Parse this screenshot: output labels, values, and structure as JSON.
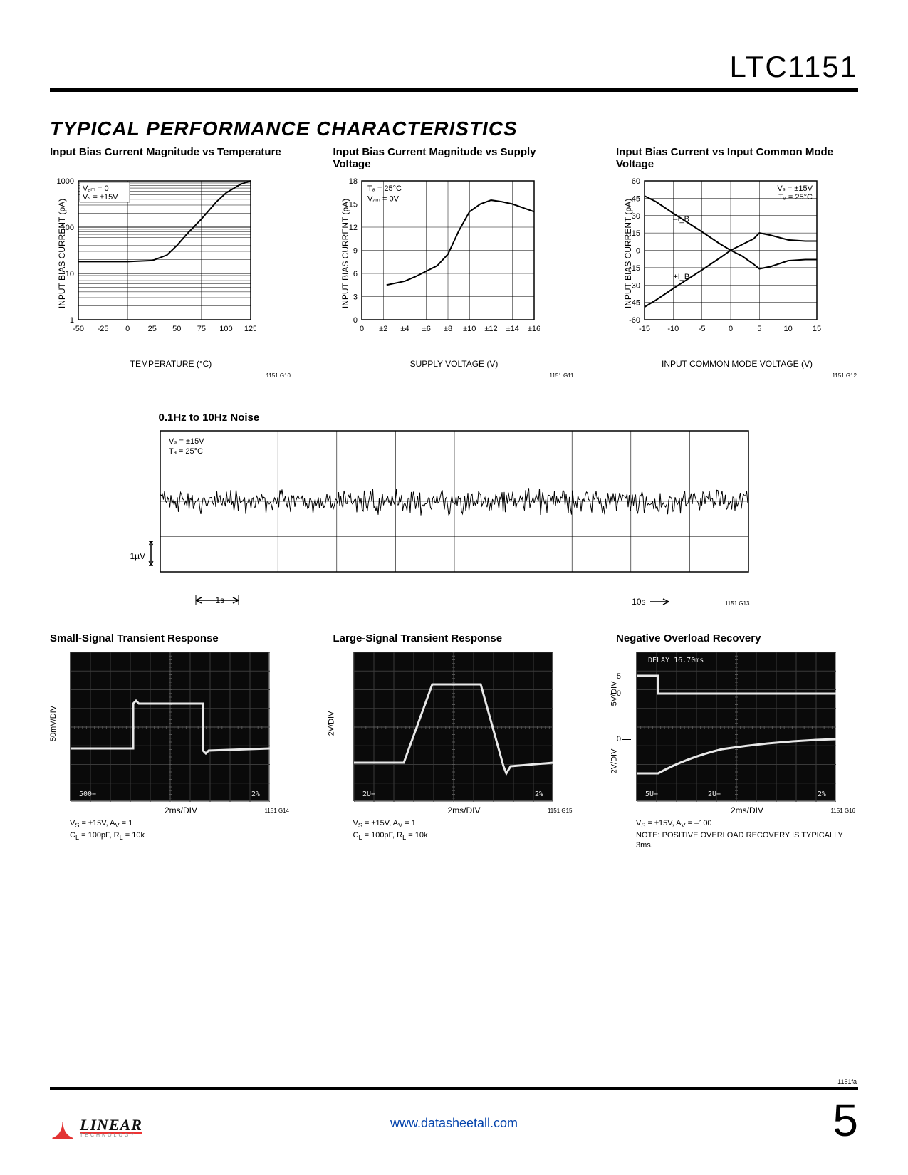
{
  "part_number": "LTC1151",
  "section_title": "TYPICAL PERFORMANCE CHARACTERISTICS",
  "charts": {
    "chart1": {
      "title": "Input Bias Current Magnitude vs Temperature",
      "figno": "1151 G10",
      "xlabel": "TEMPERATURE (°C)",
      "ylabel": "INPUT BIAS CURRENT (pA)",
      "yscale": "log",
      "xlim": [
        -50,
        125
      ],
      "xtick_step": 25,
      "ylim": [
        1,
        1000
      ],
      "yticks": [
        1,
        10,
        100,
        1000
      ],
      "annotation": [
        "V_CM = 0",
        "V_S = ±15V"
      ],
      "line_color": "#000000",
      "line_width": 2,
      "data_x": [
        -50,
        -25,
        0,
        25,
        40,
        50,
        60,
        75,
        90,
        100,
        115,
        125
      ],
      "data_y": [
        18,
        18,
        18,
        19,
        25,
        40,
        70,
        150,
        350,
        550,
        850,
        1000
      ]
    },
    "chart2": {
      "title": "Input Bias Current Magnitude vs Supply Voltage",
      "figno": "1151 G11",
      "xlabel": "SUPPLY VOLTAGE (V)",
      "ylabel": "INPUT BIAS CURRENT (pA)",
      "yscale": "linear",
      "xticks": [
        "0",
        "±2",
        "±4",
        "±6",
        "±8",
        "±10",
        "±12",
        "±14",
        "±16"
      ],
      "xlim": [
        0,
        16
      ],
      "ylim": [
        0,
        18
      ],
      "ytick_step": 3,
      "annotation": [
        "T_A = 25°C",
        "V_CM = 0V"
      ],
      "line_color": "#000000",
      "line_width": 2,
      "data_x": [
        2.3,
        4,
        5,
        6,
        7,
        8,
        9,
        10,
        11,
        12,
        13,
        14,
        15,
        16
      ],
      "data_y": [
        4.5,
        5,
        5.6,
        6.3,
        7,
        8.5,
        11.5,
        14,
        15,
        15.5,
        15.3,
        15,
        14.5,
        14
      ]
    },
    "chart3": {
      "title": "Input Bias Current vs Input Common Mode Voltage",
      "figno": "1151 G12",
      "xlabel": "INPUT COMMON MODE VOLTAGE (V)",
      "ylabel": "INPUT BIAS CURRENT (pA)",
      "xlim": [
        -15,
        15
      ],
      "xtick_step": 5,
      "ylim": [
        -60,
        60
      ],
      "ytick_step": 15,
      "annotation": [
        "V_S = ±15V",
        "T_A = 25°C"
      ],
      "line_color": "#000000",
      "line_width": 2,
      "series": [
        {
          "label": "–I_B",
          "label_x": -10,
          "label_y": 25,
          "data_x": [
            -15,
            -13,
            -10,
            -5,
            -2,
            0,
            2,
            4,
            5,
            7,
            10,
            13,
            15
          ],
          "data_y": [
            47,
            42,
            32,
            16,
            6,
            0,
            5,
            10,
            15,
            13,
            9,
            8,
            8
          ]
        },
        {
          "label": "+I_B",
          "label_x": -10,
          "label_y": -25,
          "data_x": [
            -15,
            -13,
            -10,
            -5,
            -2,
            0,
            2,
            4,
            5,
            7,
            10,
            13,
            15
          ],
          "data_y": [
            -49,
            -43,
            -33,
            -17,
            -7,
            0,
            -5,
            -12,
            -16,
            -14,
            -9,
            -8,
            -8
          ]
        }
      ]
    }
  },
  "noise": {
    "title": "0.1Hz to 10Hz Noise",
    "figno": "1151 G13",
    "annotation": [
      "V_S = ±15V",
      "T_A = 25°C"
    ],
    "y_marker": "1µV",
    "x_start_label": "1s",
    "x_end_label": "10s",
    "grid_cols": 10,
    "grid_rows": 4,
    "line_color": "#000000"
  },
  "scopes": {
    "scope1": {
      "title": "Small-Signal Transient Response",
      "figno": "1151 G14",
      "yaxis": "50mV/DIV",
      "xaxis": "2ms/DIV",
      "conditions": "V_S = ±15V, A_V = 1\nC_L = 100pF, R_L = 10k",
      "trace_color": "#e8e8e8",
      "on_screen_left": "500=",
      "on_screen_right": "2%"
    },
    "scope2": {
      "title": "Large-Signal Transient Response",
      "figno": "1151 G15",
      "yaxis": "2V/DIV",
      "xaxis": "2ms/DIV",
      "conditions": "V_S = ±15V, A_V = 1\nC_L = 100pF, R_L = 10k",
      "trace_color": "#e8e8e8",
      "on_screen_left": "2U=",
      "on_screen_right": "2%"
    },
    "scope3": {
      "title": "Negative Overload Recovery",
      "figno": "1151 G16",
      "xaxis": "2ms/DIV",
      "yaxis_top": "5V/DIV",
      "yaxis_bottom": "2V/DIV",
      "top_markers": [
        "5",
        "0"
      ],
      "bottom_markers": [
        "0"
      ],
      "conditions": "V_S = ±15V, A_V = –100\nNOTE: POSITIVE OVERLOAD RECOVERY IS TYPICALLY 3ms.",
      "on_screen_top": "DELAY       16.70ms",
      "on_screen_left": "5U=",
      "on_screen_mid": "2U=",
      "on_screen_right": "2%"
    }
  },
  "footer": {
    "small": "1151fa",
    "page": "5",
    "link": "www.datasheetall.com",
    "logo_main": "LINEAR",
    "logo_sub": "TECHNOLOGY",
    "logo_color": "#e33333"
  }
}
